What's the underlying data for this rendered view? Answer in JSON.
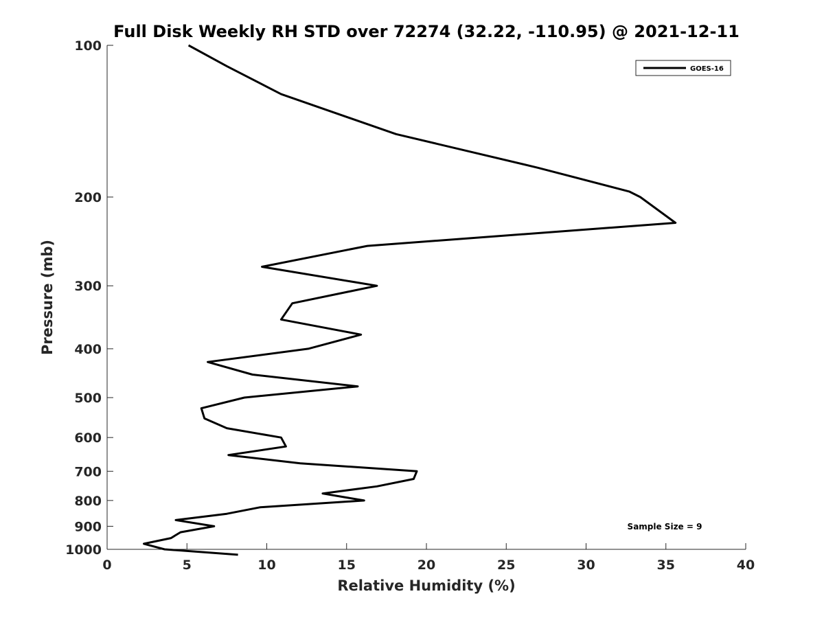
{
  "chart_data": {
    "type": "line",
    "title": "Full Disk Weekly RH STD over 72274 (32.22, -110.95) @ 2021-12-11",
    "xlabel": "Relative Humidity (%)",
    "ylabel": "Pressure (mb)",
    "xlim": [
      0,
      40
    ],
    "ylim": [
      100,
      1000
    ],
    "y_scale": "log",
    "y_reversed": true,
    "grid": false,
    "x_ticks": [
      0,
      5,
      10,
      15,
      20,
      25,
      30,
      35,
      40
    ],
    "y_ticks": [
      100,
      200,
      300,
      400,
      500,
      600,
      700,
      800,
      900,
      1000
    ],
    "legend_position": "top-right",
    "annotation": "Sample Size = 9",
    "series": [
      {
        "name": "GOES-16",
        "color": "#000000",
        "points": [
          {
            "x": 5.1,
            "pressure": 100
          },
          {
            "x": 7.5,
            "pressure": 110
          },
          {
            "x": 10.9,
            "pressure": 125
          },
          {
            "x": 18.1,
            "pressure": 150
          },
          {
            "x": 27.0,
            "pressure": 175
          },
          {
            "x": 32.7,
            "pressure": 195
          },
          {
            "x": 33.4,
            "pressure": 200
          },
          {
            "x": 35.6,
            "pressure": 225
          },
          {
            "x": 16.3,
            "pressure": 250
          },
          {
            "x": 9.7,
            "pressure": 275
          },
          {
            "x": 16.9,
            "pressure": 300
          },
          {
            "x": 11.6,
            "pressure": 325
          },
          {
            "x": 10.9,
            "pressure": 350
          },
          {
            "x": 15.9,
            "pressure": 375
          },
          {
            "x": 12.6,
            "pressure": 400
          },
          {
            "x": 6.3,
            "pressure": 425
          },
          {
            "x": 9.1,
            "pressure": 450
          },
          {
            "x": 15.7,
            "pressure": 475
          },
          {
            "x": 8.6,
            "pressure": 500
          },
          {
            "x": 5.9,
            "pressure": 525
          },
          {
            "x": 6.1,
            "pressure": 550
          },
          {
            "x": 7.5,
            "pressure": 575
          },
          {
            "x": 10.9,
            "pressure": 600
          },
          {
            "x": 11.2,
            "pressure": 625
          },
          {
            "x": 7.6,
            "pressure": 650
          },
          {
            "x": 12.1,
            "pressure": 675
          },
          {
            "x": 19.4,
            "pressure": 700
          },
          {
            "x": 19.2,
            "pressure": 725
          },
          {
            "x": 16.9,
            "pressure": 750
          },
          {
            "x": 13.5,
            "pressure": 775
          },
          {
            "x": 16.1,
            "pressure": 800
          },
          {
            "x": 9.6,
            "pressure": 825
          },
          {
            "x": 7.5,
            "pressure": 850
          },
          {
            "x": 4.3,
            "pressure": 875
          },
          {
            "x": 6.7,
            "pressure": 900
          },
          {
            "x": 4.6,
            "pressure": 925
          },
          {
            "x": 4.0,
            "pressure": 950
          },
          {
            "x": 2.3,
            "pressure": 975
          },
          {
            "x": 3.6,
            "pressure": 1000
          },
          {
            "x": 8.2,
            "pressure": 1025
          }
        ]
      }
    ]
  }
}
